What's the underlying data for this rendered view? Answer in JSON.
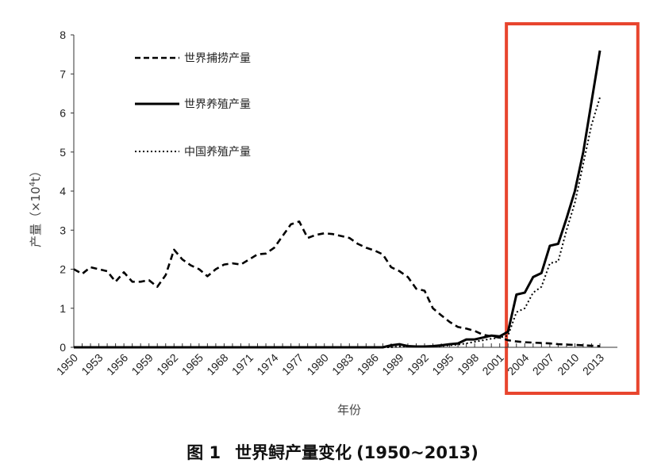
{
  "chart_data": {
    "type": "line",
    "xlabel": "年份",
    "ylabel_main": "产量（×10",
    "ylabel_sup": "4",
    "ylabel_tail": "t）",
    "ylim": [
      0,
      8
    ],
    "yticks": [
      "0",
      "1",
      "2",
      "3",
      "4",
      "5",
      "6",
      "7",
      "8"
    ],
    "x_ticks": [
      "1950",
      "1953",
      "1956",
      "1959",
      "1962",
      "1965",
      "1968",
      "1971",
      "1974",
      "1977",
      "1980",
      "1983",
      "1986",
      "1989",
      "1992",
      "1995",
      "1998",
      "2001",
      "2004",
      "2007",
      "2010",
      "2013"
    ],
    "x_range": [
      1950,
      2013
    ],
    "caption_prefix": "图 1",
    "caption_title": "世界鲟产量变化",
    "caption_years": "(1950~2013)",
    "highlight": {
      "from": 2001.8,
      "to": 2014.5,
      "color": "#e8452e"
    },
    "legend_position": "top-left",
    "series": [
      {
        "name": "世界捕捞产量",
        "style": "dashed",
        "x": [
          1950,
          1951,
          1952,
          1953,
          1954,
          1955,
          1956,
          1957,
          1958,
          1959,
          1960,
          1961,
          1962,
          1963,
          1964,
          1965,
          1966,
          1967,
          1968,
          1969,
          1970,
          1971,
          1972,
          1973,
          1974,
          1975,
          1976,
          1977,
          1978,
          1979,
          1980,
          1981,
          1982,
          1983,
          1984,
          1985,
          1986,
          1987,
          1988,
          1989,
          1990,
          1991,
          1992,
          1993,
          1994,
          1995,
          1996,
          1997,
          1998,
          1999,
          2000,
          2001,
          2002,
          2003,
          2004,
          2005,
          2006,
          2007,
          2008,
          2009,
          2010,
          2011,
          2012,
          2013
        ],
        "y": [
          2.0,
          1.88,
          2.05,
          2.0,
          1.95,
          1.68,
          1.92,
          1.68,
          1.68,
          1.72,
          1.55,
          1.85,
          2.5,
          2.25,
          2.1,
          2.0,
          1.82,
          2.0,
          2.12,
          2.15,
          2.12,
          2.25,
          2.38,
          2.4,
          2.55,
          2.85,
          3.15,
          3.22,
          2.8,
          2.88,
          2.92,
          2.9,
          2.85,
          2.8,
          2.65,
          2.55,
          2.48,
          2.38,
          2.05,
          1.95,
          1.8,
          1.5,
          1.45,
          1.0,
          0.82,
          0.65,
          0.52,
          0.48,
          0.42,
          0.32,
          0.28,
          0.25,
          0.18,
          0.15,
          0.13,
          0.12,
          0.11,
          0.1,
          0.08,
          0.07,
          0.06,
          0.05,
          0.04,
          0.03
        ]
      },
      {
        "name": "世界养殖产量",
        "style": "solid",
        "x": [
          1950,
          1986,
          1987,
          1988,
          1989,
          1990,
          1991,
          1992,
          1993,
          1994,
          1995,
          1996,
          1997,
          1998,
          1999,
          2000,
          2001,
          2002,
          2003,
          2004,
          2005,
          2006,
          2007,
          2008,
          2009,
          2010,
          2011,
          2012,
          2013
        ],
        "y": [
          0,
          0,
          0,
          0.05,
          0.08,
          0.03,
          0.02,
          0.02,
          0.03,
          0.05,
          0.08,
          0.1,
          0.2,
          0.2,
          0.25,
          0.3,
          0.28,
          0.4,
          1.35,
          1.4,
          1.8,
          1.9,
          2.6,
          2.65,
          3.3,
          4.0,
          5.0,
          6.3,
          7.6
        ]
      },
      {
        "name": "中国养殖产量",
        "style": "dotted",
        "x": [
          1950,
          1988,
          1989,
          1990,
          1991,
          1992,
          1993,
          1994,
          1995,
          1996,
          1997,
          1998,
          1999,
          2000,
          2001,
          2002,
          2003,
          2004,
          2005,
          2006,
          2007,
          2008,
          2009,
          2010,
          2011,
          2012,
          2013
        ],
        "y": [
          0,
          0,
          0.02,
          0.02,
          0.02,
          0.02,
          0.03,
          0.03,
          0.05,
          0.07,
          0.1,
          0.14,
          0.18,
          0.22,
          0.25,
          0.3,
          0.9,
          1.0,
          1.4,
          1.55,
          2.15,
          2.2,
          3.0,
          3.7,
          4.7,
          5.7,
          6.4
        ]
      }
    ]
  }
}
